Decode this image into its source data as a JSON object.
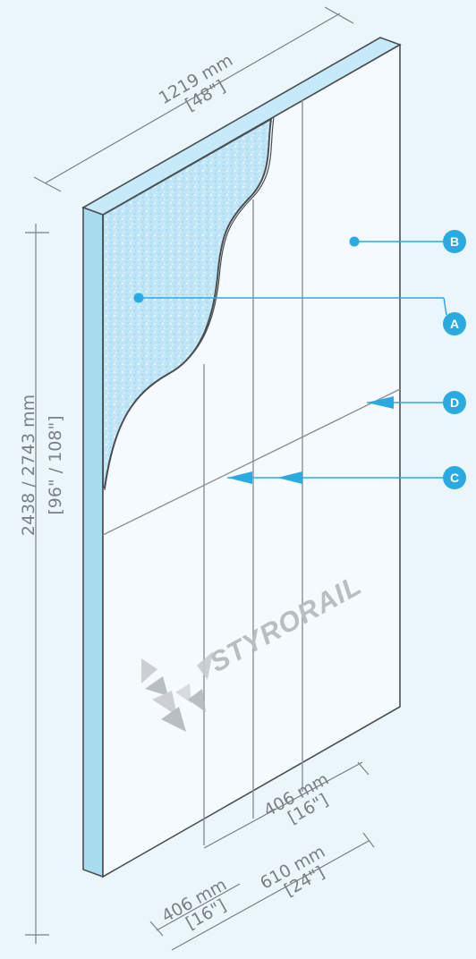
{
  "dimensions": {
    "width_mm": "1219 mm",
    "width_in": "[48\"]",
    "height_mm": "2438 / 2743 mm",
    "height_in": "[96\" / 108\"]",
    "spacing_406_mm_right": "406 mm",
    "spacing_406_in_right": "[16\"]",
    "spacing_406_mm_left": "406 mm",
    "spacing_406_in_left": "[16\"]",
    "spacing_610_mm": "610 mm",
    "spacing_610_in": "[24\"]"
  },
  "callouts": {
    "a": "A",
    "b": "B",
    "c": "C",
    "d": "D"
  },
  "brand": {
    "name": "STYRORAIL"
  },
  "colors": {
    "background": "#eaf6fc",
    "panel_face": "#f4fafd",
    "panel_edge": "#aadcf0",
    "foam": "#bfe5f6",
    "accent": "#29abe2",
    "line": "#8a9096"
  }
}
